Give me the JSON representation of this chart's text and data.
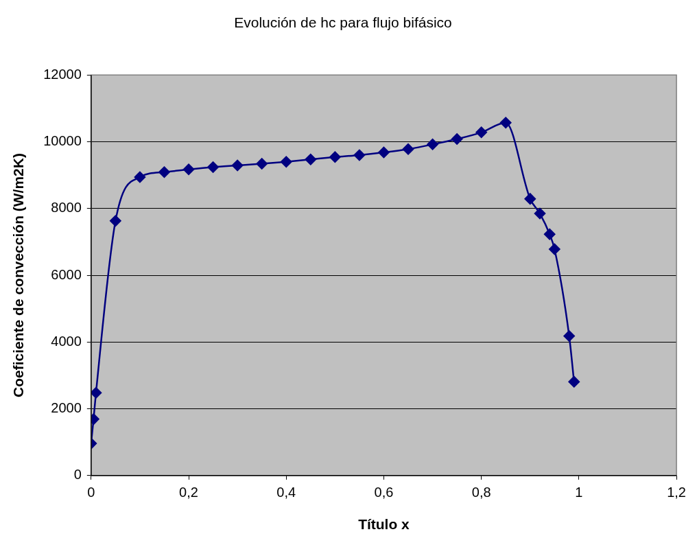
{
  "chart_data": {
    "type": "line",
    "title": "Evolución de hc para flujo bifásico",
    "xlabel": "Título x",
    "ylabel": "Coeficiente de convección (W/m2K)",
    "x": [
      0,
      0.005,
      0.01,
      0.05,
      0.1,
      0.15,
      0.2,
      0.25,
      0.3,
      0.35,
      0.4,
      0.45,
      0.5,
      0.55,
      0.6,
      0.65,
      0.7,
      0.75,
      0.8,
      0.85,
      0.9,
      0.92,
      0.94,
      0.95,
      0.98,
      0.99
    ],
    "series": [
      {
        "color": "#000080",
        "values": [
          960,
          1690,
          2480,
          7630,
          8940,
          9090,
          9170,
          9240,
          9290,
          9340,
          9400,
          9470,
          9540,
          9600,
          9680,
          9780,
          9920,
          10080,
          10280,
          10570,
          8290,
          7850,
          7230,
          6780,
          4180,
          2810
        ]
      }
    ],
    "xlim": [
      0,
      1.2
    ],
    "xticks": [
      0,
      {
        "value": 0.2,
        "label": "0,2"
      },
      {
        "value": 0.4,
        "label": "0,4"
      },
      {
        "value": 0.6,
        "label": "0,6"
      },
      {
        "value": 0.8,
        "label": "0,8"
      },
      1,
      {
        "value": 1.2,
        "label": "1,2"
      }
    ],
    "ylim": [
      0,
      12000
    ],
    "yticks": [
      0,
      2000,
      4000,
      6000,
      8000,
      10000,
      12000
    ],
    "grid": "y",
    "marker": "diamond",
    "line_style": "solid",
    "legend": false
  }
}
